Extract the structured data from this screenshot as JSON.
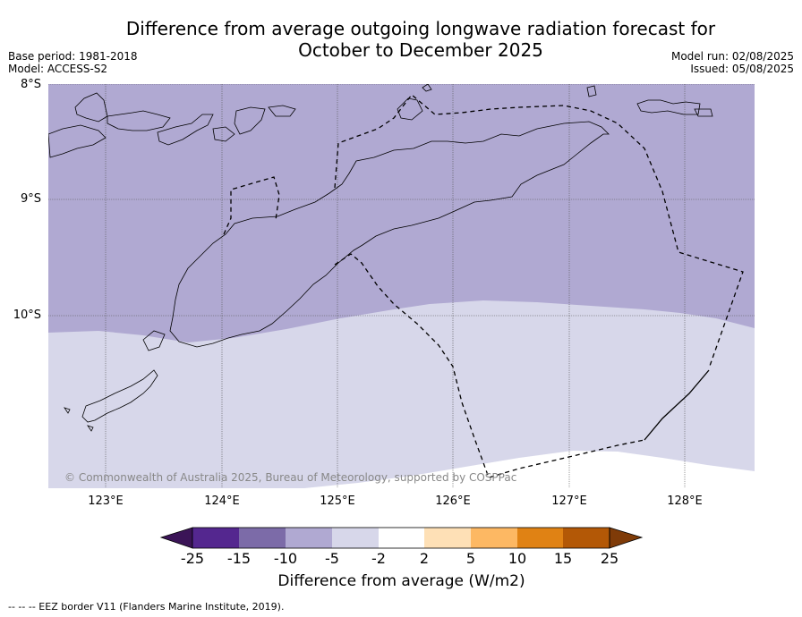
{
  "title_line1": "Difference from average outgoing longwave radiation forecast for",
  "title_line2": "October to December 2025",
  "base_period": "Base period: 1981-2018",
  "model": "Model: ACCESS-S2",
  "model_run": "Model run: 02/08/2025",
  "issued": "Issued: 05/08/2025",
  "lat_labels": [
    "8°S",
    "9°S",
    "10°S"
  ],
  "lon_labels": [
    "123°E",
    "124°E",
    "125°E",
    "126°E",
    "127°E",
    "128°E"
  ],
  "copyright": "© Commonwealth of Australia 2025, Bureau of Meteorology, supported by COSPPac",
  "colorbar": {
    "ticks": [
      "-25",
      "-15",
      "-10",
      "-5",
      "-2",
      "2",
      "5",
      "10",
      "15",
      "25"
    ],
    "colors": [
      "#3b1457",
      "#54278f",
      "#7c6ba8",
      "#b0a9d2",
      "#d7d7ea",
      "#ffffff",
      "#fee0b6",
      "#fdb863",
      "#e08214",
      "#b35806",
      "#7f3b08"
    ],
    "title": "Difference from average (W/m2)"
  },
  "footer": "--  --  -- EEZ border V11 (Flanders Marine Institute, 2019).",
  "map_colors": {
    "band_-10_-5": "#b0a9d2",
    "band_-5_-2": "#d7d7ea",
    "band_-2_2": "#ffffff",
    "coast": "#000000"
  }
}
